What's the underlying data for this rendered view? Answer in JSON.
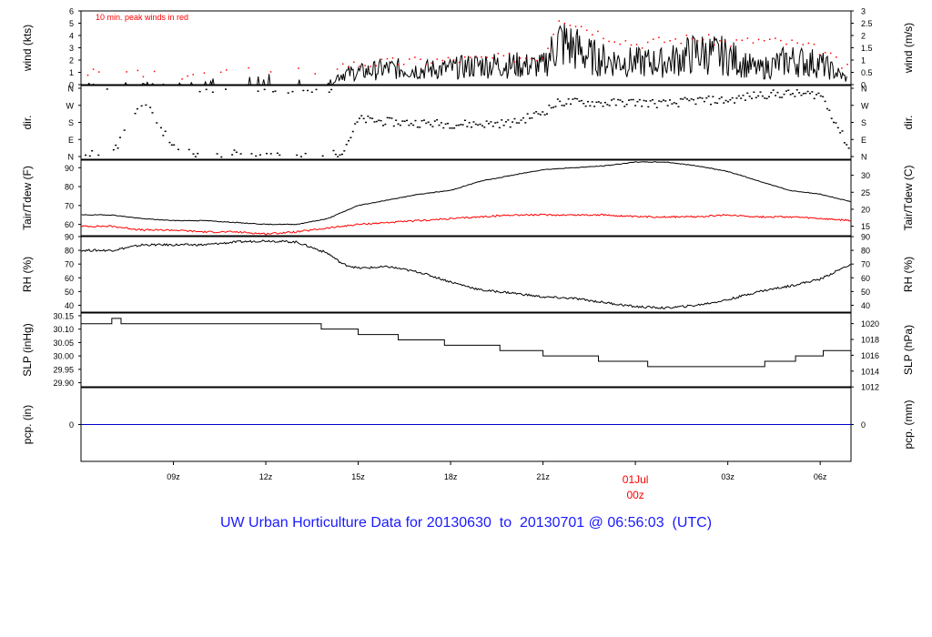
{
  "caption": "UW Urban Horticulture Data for 20130630  to  20130701 @ 06:56:03  (UTC)",
  "colors": {
    "main": "#000000",
    "accent": "#ff0000",
    "pcp": "#0000cc",
    "caption": "#1a1aff"
  },
  "chart_data": [
    {
      "type": "line",
      "id": "wind",
      "ylabel_left": "wind (kts)",
      "ylabel_right": "wind (m/s)",
      "left_ticks": [
        "0",
        "1",
        "2",
        "3",
        "4",
        "5",
        "6"
      ],
      "right_ticks": [
        "0",
        "0.5",
        "1",
        "1.5",
        "2",
        "2.5",
        "3"
      ],
      "annotation": "10 min. peak winds in red",
      "ylim": [
        0,
        6
      ],
      "series": [
        {
          "values_description_free": true,
          "x": [
            7.0,
            8.0,
            9.0,
            10.0,
            11.0,
            12.0,
            13.0,
            14.0,
            14.5,
            15.0,
            16.0,
            17.0,
            18.0,
            19.0,
            20.0,
            21.0,
            21.5,
            22.0,
            22.5,
            23.0,
            24.0,
            25.0,
            26.0,
            27.0,
            28.0,
            29.0,
            30.0,
            31.0
          ],
          "y": [
            0.1,
            0.2,
            0.1,
            0.3,
            0.4,
            0.8,
            0.3,
            0.2,
            0.9,
            1.0,
            1.3,
            1.2,
            1.3,
            1.6,
            1.6,
            1.5,
            3.5,
            3.0,
            2.3,
            2.0,
            1.8,
            1.8,
            2.6,
            2.3,
            1.2,
            2.0,
            1.7,
            0.3
          ]
        },
        {
          "peaks": true,
          "x": [
            7.0,
            9.0,
            11.0,
            13.0,
            14.5,
            16.0,
            18.0,
            20.0,
            21.0,
            21.5,
            22.0,
            23.0,
            24.0,
            25.0,
            26.0,
            27.0,
            28.0,
            29.0,
            30.0,
            31.0
          ],
          "y": [
            0.9,
            0.8,
            1.0,
            1.0,
            1.6,
            1.8,
            2.0,
            2.2,
            2.3,
            5.5,
            5.0,
            4.0,
            3.3,
            3.6,
            3.8,
            3.4,
            3.6,
            3.4,
            2.8,
            1.0
          ]
        }
      ]
    },
    {
      "type": "scatter",
      "id": "dir",
      "ylabel_left": "dir.",
      "ylabel_right": "dir.",
      "left_ticks": [
        "N",
        "E",
        "S",
        "W",
        "N"
      ],
      "right_ticks": [
        "N",
        "E",
        "S",
        "W",
        "N"
      ],
      "ylim": [
        0,
        360
      ],
      "x": [
        7.0,
        8.0,
        9.0,
        10.0,
        11.0,
        12.0,
        13.0,
        14.0,
        14.5,
        15.0,
        16.0,
        17.0,
        18.0,
        19.0,
        20.0,
        21.0,
        21.5,
        22.0,
        23.0,
        24.0,
        25.0,
        26.0,
        27.0,
        28.0,
        29.0,
        30.0,
        31.0
      ],
      "y": [
        20,
        300,
        40,
        0,
        20,
        0,
        0,
        0,
        40,
        200,
        185,
        180,
        175,
        175,
        180,
        240,
        290,
        290,
        285,
        290,
        280,
        300,
        300,
        330,
        335,
        330,
        20
      ]
    },
    {
      "type": "line",
      "id": "temp",
      "ylabel_left": "Tair/Tdew (F)",
      "ylabel_right": "Tair/Tdew (C)",
      "left_ticks": [
        "60",
        "70",
        "80",
        "90"
      ],
      "right_ticks": [
        "15",
        "20",
        "25",
        "30"
      ],
      "ylim": [
        54,
        94
      ],
      "series": [
        {
          "name": "Tair",
          "x": [
            7.0,
            8.0,
            9.0,
            10.0,
            11.0,
            12.0,
            13.0,
            14.0,
            15.0,
            16.0,
            17.0,
            18.0,
            19.0,
            20.0,
            21.0,
            22.0,
            23.0,
            24.0,
            25.0,
            26.0,
            27.0,
            28.0,
            29.0,
            30.0,
            31.0
          ],
          "y": [
            65,
            63,
            62,
            62,
            61,
            60,
            60,
            63,
            70,
            73,
            76,
            78,
            83,
            86,
            89,
            90,
            91,
            93,
            93,
            91,
            88,
            83,
            78,
            76,
            72
          ]
        },
        {
          "name": "Tdew",
          "x": [
            7.0,
            8.0,
            9.0,
            10.0,
            11.0,
            12.0,
            13.0,
            14.0,
            15.0,
            16.0,
            17.0,
            18.0,
            19.0,
            20.0,
            21.0,
            22.0,
            23.0,
            24.0,
            25.0,
            26.0,
            27.0,
            28.0,
            29.0,
            30.0,
            31.0
          ],
          "y": [
            59,
            57,
            57,
            56,
            56,
            55,
            56,
            58,
            60,
            61,
            62,
            63,
            64,
            65,
            65,
            65,
            65,
            64,
            64,
            64,
            65,
            64,
            64,
            63,
            62
          ]
        }
      ]
    },
    {
      "type": "line",
      "id": "rh",
      "ylabel_left": "RH (%)",
      "ylabel_right": "RH (%)",
      "left_ticks": [
        "40",
        "50",
        "60",
        "70",
        "80",
        "90"
      ],
      "right_ticks": [
        "40",
        "50",
        "60",
        "70",
        "80",
        "90"
      ],
      "ylim": [
        35,
        90
      ],
      "series": [
        {
          "x": [
            7.0,
            8.0,
            9.0,
            10.0,
            11.0,
            12.0,
            13.0,
            14.0,
            14.5,
            15.0,
            16.0,
            17.0,
            18.0,
            19.0,
            20.0,
            21.0,
            22.0,
            23.0,
            24.0,
            25.0,
            26.0,
            27.0,
            28.0,
            29.0,
            30.0,
            31.0
          ],
          "y": [
            80,
            84,
            84,
            84,
            86,
            87,
            86,
            78,
            70,
            67,
            68,
            64,
            57,
            51,
            49,
            46,
            45,
            42,
            39,
            38,
            40,
            44,
            50,
            54,
            59,
            70
          ]
        }
      ]
    },
    {
      "type": "line",
      "id": "slp",
      "ylabel_left": "SLP (inHg)",
      "ylabel_right": "SLP (hPa)",
      "left_ticks": [
        "29.90",
        "29.95",
        "30.00",
        "30.05",
        "30.10",
        "30.15"
      ],
      "right_ticks": [
        "1012",
        "1014",
        "1016",
        "1018",
        "1020"
      ],
      "ylim": [
        29.885,
        30.16
      ],
      "series": [
        {
          "x": [
            6.0,
            7.0,
            7.3,
            13.8,
            15.0,
            16.3,
            17.8,
            19.6,
            21.0,
            22.8,
            24.4,
            27.0,
            28.2,
            29.2,
            30.1,
            31.0
          ],
          "y": [
            30.12,
            30.14,
            30.12,
            30.1,
            30.08,
            30.06,
            30.04,
            30.02,
            30.0,
            29.98,
            29.96,
            29.96,
            29.98,
            30.0,
            30.02,
            30.02
          ]
        }
      ]
    },
    {
      "type": "line",
      "id": "pcp",
      "ylabel_left": "pcp. (in)",
      "ylabel_right": "pcp. (mm)",
      "left_ticks": [
        "0"
      ],
      "right_ticks": [
        "0"
      ],
      "ylim": [
        -1,
        1
      ],
      "series": [
        {
          "x": [
            6.0,
            31.0
          ],
          "y": [
            0,
            0
          ]
        }
      ]
    }
  ],
  "x_axis": {
    "xlim": [
      6.0,
      31.0
    ],
    "ticks": [
      {
        "x": 9.0,
        "label": "09z"
      },
      {
        "x": 12.0,
        "label": "12z"
      },
      {
        "x": 15.0,
        "label": "15z"
      },
      {
        "x": 18.0,
        "label": "18z"
      },
      {
        "x": 21.0,
        "label": "21z"
      },
      {
        "x": 27.0,
        "label": "03z"
      },
      {
        "x": 30.0,
        "label": "06z"
      }
    ],
    "date_tick": {
      "x": 24.0,
      "line1": "01Jul",
      "line2": "00z"
    }
  }
}
